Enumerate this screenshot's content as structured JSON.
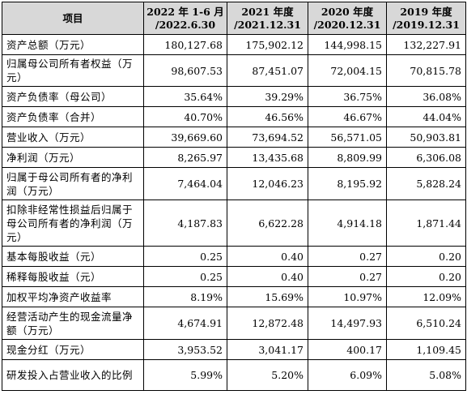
{
  "table": {
    "headers": [
      {
        "line1": "项目",
        "line2": ""
      },
      {
        "line1": "2022 年 1-6 月",
        "line2": "/2022.6.30"
      },
      {
        "line1": "2021 年度",
        "line2": "/2021.12.31"
      },
      {
        "line1": "2020 年度",
        "line2": "/2020.12.31"
      },
      {
        "line1": "2019 年度",
        "line2": "/2019.12.31"
      }
    ],
    "rows": [
      {
        "label": "资产总额（万元）",
        "values": [
          "180,127.68",
          "175,902.12",
          "144,998.15",
          "132,227.91"
        ]
      },
      {
        "label": "归属母公司所有者权益（万元）",
        "values": [
          "98,607.53",
          "87,451.07",
          "72,004.15",
          "70,815.78"
        ]
      },
      {
        "label": "资产负债率（母公司）",
        "values": [
          "35.64%",
          "39.29%",
          "36.75%",
          "36.08%"
        ]
      },
      {
        "label": "资产负债率（合并）",
        "values": [
          "40.70%",
          "46.56%",
          "46.67%",
          "44.04%"
        ]
      },
      {
        "label": "营业收入（万元）",
        "values": [
          "39,669.60",
          "73,694.52",
          "56,571.05",
          "50,903.81"
        ]
      },
      {
        "label": "净利润（万元）",
        "values": [
          "8,265.97",
          "13,435.68",
          "8,809.99",
          "6,306.08"
        ]
      },
      {
        "label": "归属于母公司所有者的净利润（万元）",
        "values": [
          "7,464.04",
          "12,046.23",
          "8,195.92",
          "5,828.24"
        ]
      },
      {
        "label": "扣除非经常性损益后归属于母公司所有者的净利润（万元）",
        "values": [
          "4,187.83",
          "6,622.28",
          "4,914.18",
          "1,871.44"
        ]
      },
      {
        "label": "基本每股收益（元）",
        "values": [
          "0.25",
          "0.40",
          "0.27",
          "0.20"
        ]
      },
      {
        "label": "稀释每股收益（元）",
        "values": [
          "0.25",
          "0.40",
          "0.27",
          "0.20"
        ]
      },
      {
        "label": "加权平均净资产收益率",
        "values": [
          "8.19%",
          "15.69%",
          "10.97%",
          "12.09%"
        ]
      },
      {
        "label": "经营活动产生的现金流量净额（万元）",
        "values": [
          "4,674.91",
          "12,872.48",
          "14,497.93",
          "6,510.24"
        ]
      },
      {
        "label": "现金分红（万元）",
        "values": [
          "3,953.52",
          "3,041.17",
          "400.17",
          "1,109.45"
        ]
      },
      {
        "label": "研发投入占营业收入的比例",
        "values": [
          "5.99%",
          "5.20%",
          "6.09%",
          "5.08%"
        ]
      }
    ]
  }
}
